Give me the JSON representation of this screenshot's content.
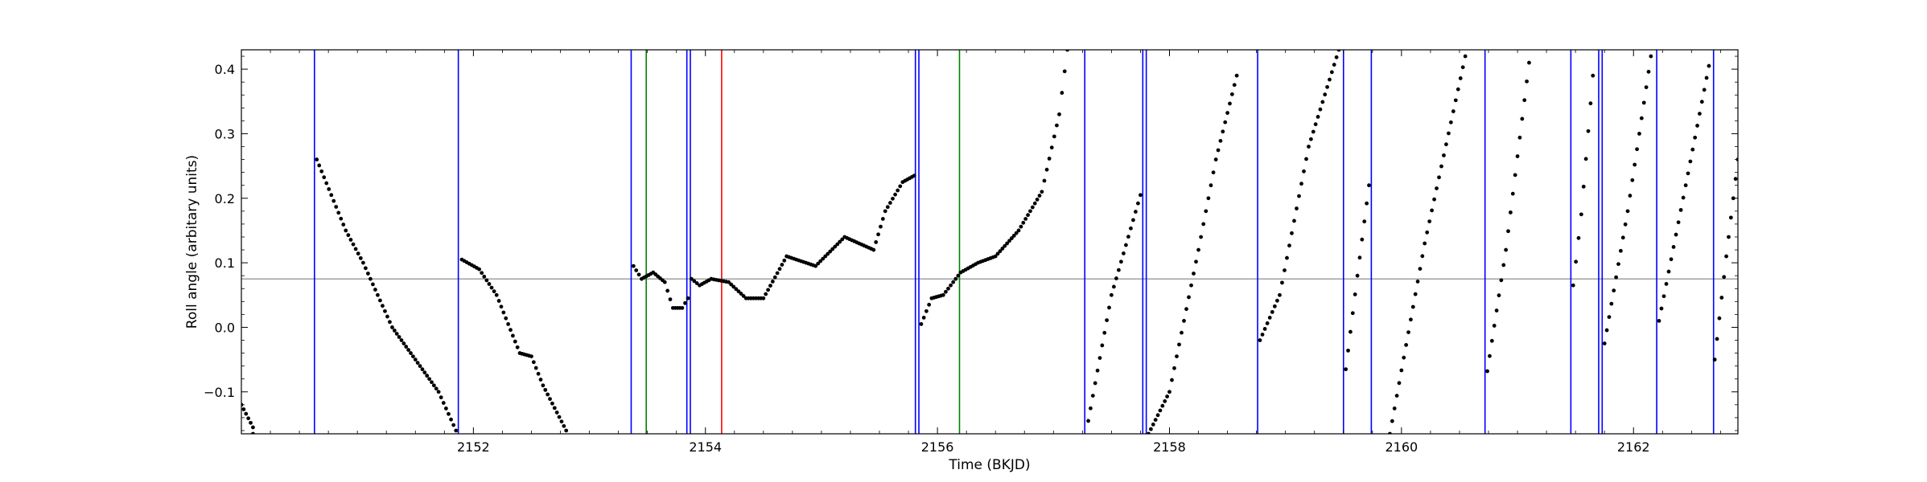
{
  "chart_data": {
    "type": "scatter",
    "title": "",
    "xlabel": "Time (BKJD)",
    "ylabel": "Roll angle (arbitary units)",
    "xlim": [
      2150.0,
      2162.9
    ],
    "ylim": [
      -0.165,
      0.43
    ],
    "xticks": [
      2152,
      2154,
      2156,
      2158,
      2160,
      2162
    ],
    "yticks": [
      -0.1,
      0.0,
      0.1,
      0.2,
      0.3,
      0.4
    ],
    "ytick_labels": [
      "−0.1",
      "0.0",
      "0.1",
      "0.2",
      "0.3",
      "0.4"
    ],
    "grid": false,
    "colors": {
      "points": "#000000",
      "blue_lines": "#0000ff",
      "green_lines": "#008000",
      "red_lines": "#ff0000",
      "reference_line": "#808080"
    },
    "reference_line_y": 0.075,
    "vertical_lines": {
      "blue": [
        2150.63,
        2151.87,
        2153.36,
        2153.84,
        2153.87,
        2155.81,
        2155.84,
        2157.27,
        2157.77,
        2157.8,
        2158.76,
        2159.5,
        2159.74,
        2160.72,
        2161.46,
        2161.7,
        2161.73,
        2162.2,
        2162.69
      ],
      "green": [
        2153.49,
        2156.19
      ],
      "red": [
        2154.14
      ]
    },
    "segments": [
      {
        "x": [
          2150.0,
          2150.1,
          2150.1
        ],
        "y": [
          -0.12,
          -0.155,
          -0.165
        ]
      },
      {
        "x": [
          2150.65,
          2150.9,
          2151.05,
          2151.3,
          2151.5,
          2151.7,
          2151.85
        ],
        "y": [
          0.26,
          0.15,
          0.1,
          0.0,
          -0.05,
          -0.1,
          -0.16
        ]
      },
      {
        "x": [
          2151.9,
          2152.05,
          2152.2,
          2152.4,
          2152.5,
          2152.6,
          2152.8
        ],
        "y": [
          0.105,
          0.09,
          0.05,
          -0.04,
          -0.045,
          -0.09,
          -0.16
        ]
      },
      {
        "x": [
          2153.38,
          2153.45,
          2153.55,
          2153.65,
          2153.72,
          2153.8,
          2153.85
        ],
        "y": [
          0.095,
          0.075,
          0.085,
          0.07,
          0.03,
          0.03,
          0.045
        ]
      },
      {
        "x": [
          2153.88,
          2153.95,
          2154.05,
          2154.2,
          2154.35,
          2154.5,
          2154.7,
          2154.95,
          2155.2,
          2155.45,
          2155.55,
          2155.7,
          2155.8
        ],
        "y": [
          0.075,
          0.065,
          0.075,
          0.07,
          0.045,
          0.045,
          0.11,
          0.095,
          0.14,
          0.12,
          0.18,
          0.225,
          0.235
        ]
      },
      {
        "x": [
          2155.86,
          2155.95,
          2156.05,
          2156.2,
          2156.35,
          2156.5,
          2156.7,
          2156.9,
          2157.05,
          2157.12
        ],
        "y": [
          0.005,
          0.045,
          0.05,
          0.085,
          0.1,
          0.11,
          0.15,
          0.21,
          0.33,
          0.43
        ]
      },
      {
        "x": [
          2157.3,
          2157.5,
          2157.75
        ],
        "y": [
          -0.145,
          0.05,
          0.205
        ]
      },
      {
        "x": [
          2157.82,
          2158.0,
          2158.25,
          2158.4,
          2158.58
        ],
        "y": [
          -0.165,
          -0.1,
          0.12,
          0.26,
          0.39
        ]
      },
      {
        "x": [
          2158.78,
          2158.95,
          2159.2,
          2159.46
        ],
        "y": [
          -0.02,
          0.05,
          0.28,
          0.43
        ]
      },
      {
        "x": [
          2159.52,
          2159.62,
          2159.72
        ],
        "y": [
          -0.065,
          0.08,
          0.22
        ]
      },
      {
        "x": [
          2159.9,
          2160.2,
          2160.55
        ],
        "y": [
          -0.165,
          0.13,
          0.42
        ]
      },
      {
        "x": [
          2160.74,
          2160.9,
          2161.1
        ],
        "y": [
          -0.068,
          0.12,
          0.41
        ]
      },
      {
        "x": [
          2161.48,
          2161.55,
          2161.65
        ],
        "y": [
          0.065,
          0.175,
          0.39
        ]
      },
      {
        "x": [
          2161.75,
          2161.95,
          2162.15
        ],
        "y": [
          -0.025,
          0.18,
          0.42
        ]
      },
      {
        "x": [
          2162.22,
          2162.45,
          2162.65
        ],
        "y": [
          0.01,
          0.22,
          0.405
        ]
      },
      {
        "x": [
          2162.7,
          2162.8,
          2162.9
        ],
        "y": [
          -0.05,
          0.11,
          0.26
        ]
      }
    ]
  }
}
